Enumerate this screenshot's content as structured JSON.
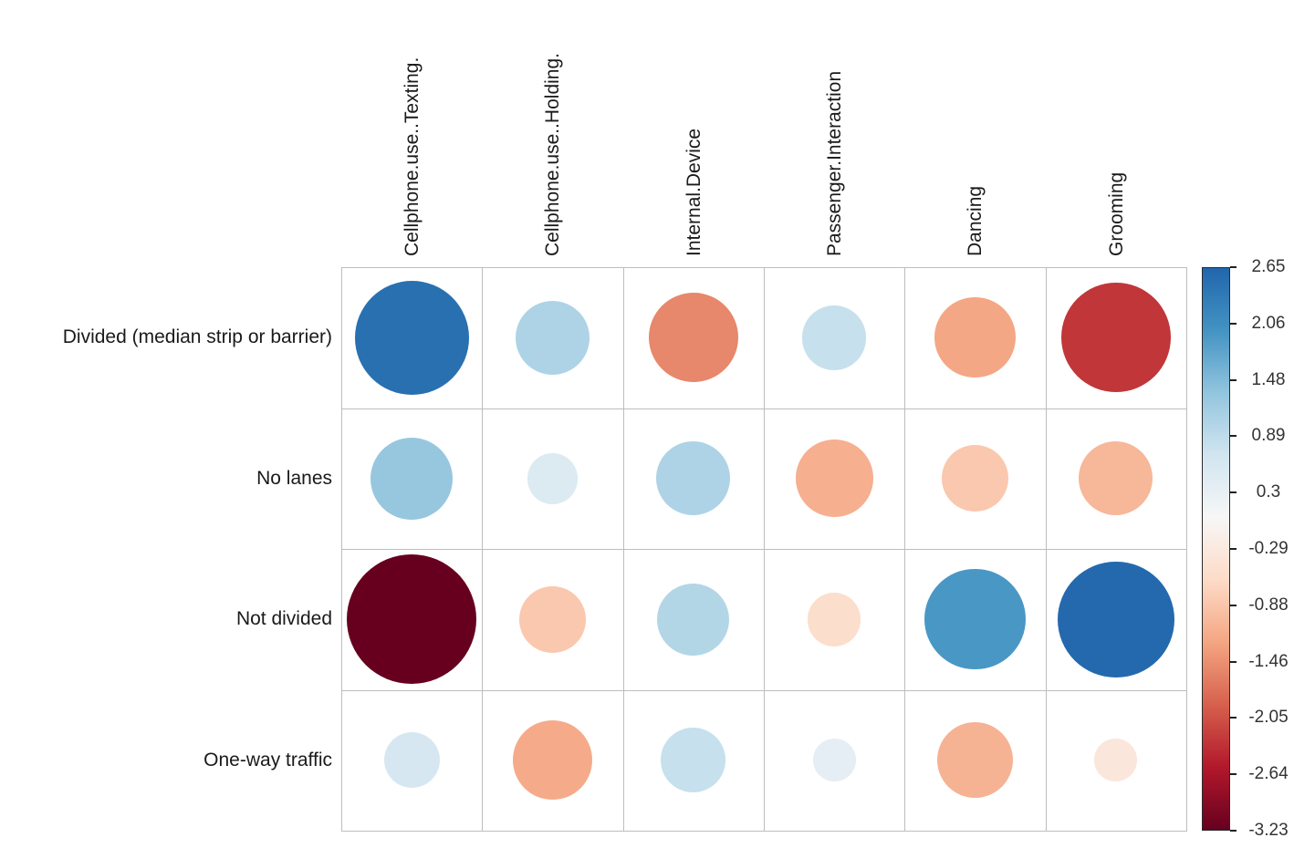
{
  "chart_data": {
    "type": "heatmap",
    "style": "correlation-bubble-plot (circle area and color encode value)",
    "title": "",
    "rows": [
      "Divided (median strip or barrier)",
      "No lanes",
      "Not divided",
      "One-way traffic"
    ],
    "columns": [
      "Cellphone.use..Texting.",
      "Cellphone.use..Holding.",
      "Internal.Device",
      "Passenger.Interaction",
      "Dancing",
      "Grooming"
    ],
    "values": [
      [
        2.5,
        1.05,
        -1.55,
        0.8,
        -1.25,
        -2.3
      ],
      [
        1.3,
        0.5,
        1.05,
        -1.15,
        -0.85,
        -1.05
      ],
      [
        -3.23,
        -0.85,
        1.0,
        -0.55,
        1.95,
        2.6
      ],
      [
        0.6,
        -1.2,
        0.8,
        0.35,
        -1.1,
        -0.35
      ]
    ],
    "value_domain": [
      -3.23,
      2.65
    ],
    "grid": true,
    "legend_position": "right",
    "colorbar": {
      "tick_labels": [
        "2.65",
        "2.06",
        "1.48",
        "0.89",
        "0.3",
        "-0.29",
        "-0.88",
        "-1.46",
        "-2.05",
        "-2.64",
        "-3.23"
      ]
    },
    "palette_low_to_high": [
      "#67001f",
      "#b2182b",
      "#d6604d",
      "#f4a582",
      "#fddbc7",
      "#f7f7f7",
      "#d1e5f0",
      "#92c5de",
      "#4393c3",
      "#2166ac"
    ],
    "grid_color": "#bdbdbd",
    "background_color": "#ffffff",
    "text_color": "#1a1a1a"
  }
}
